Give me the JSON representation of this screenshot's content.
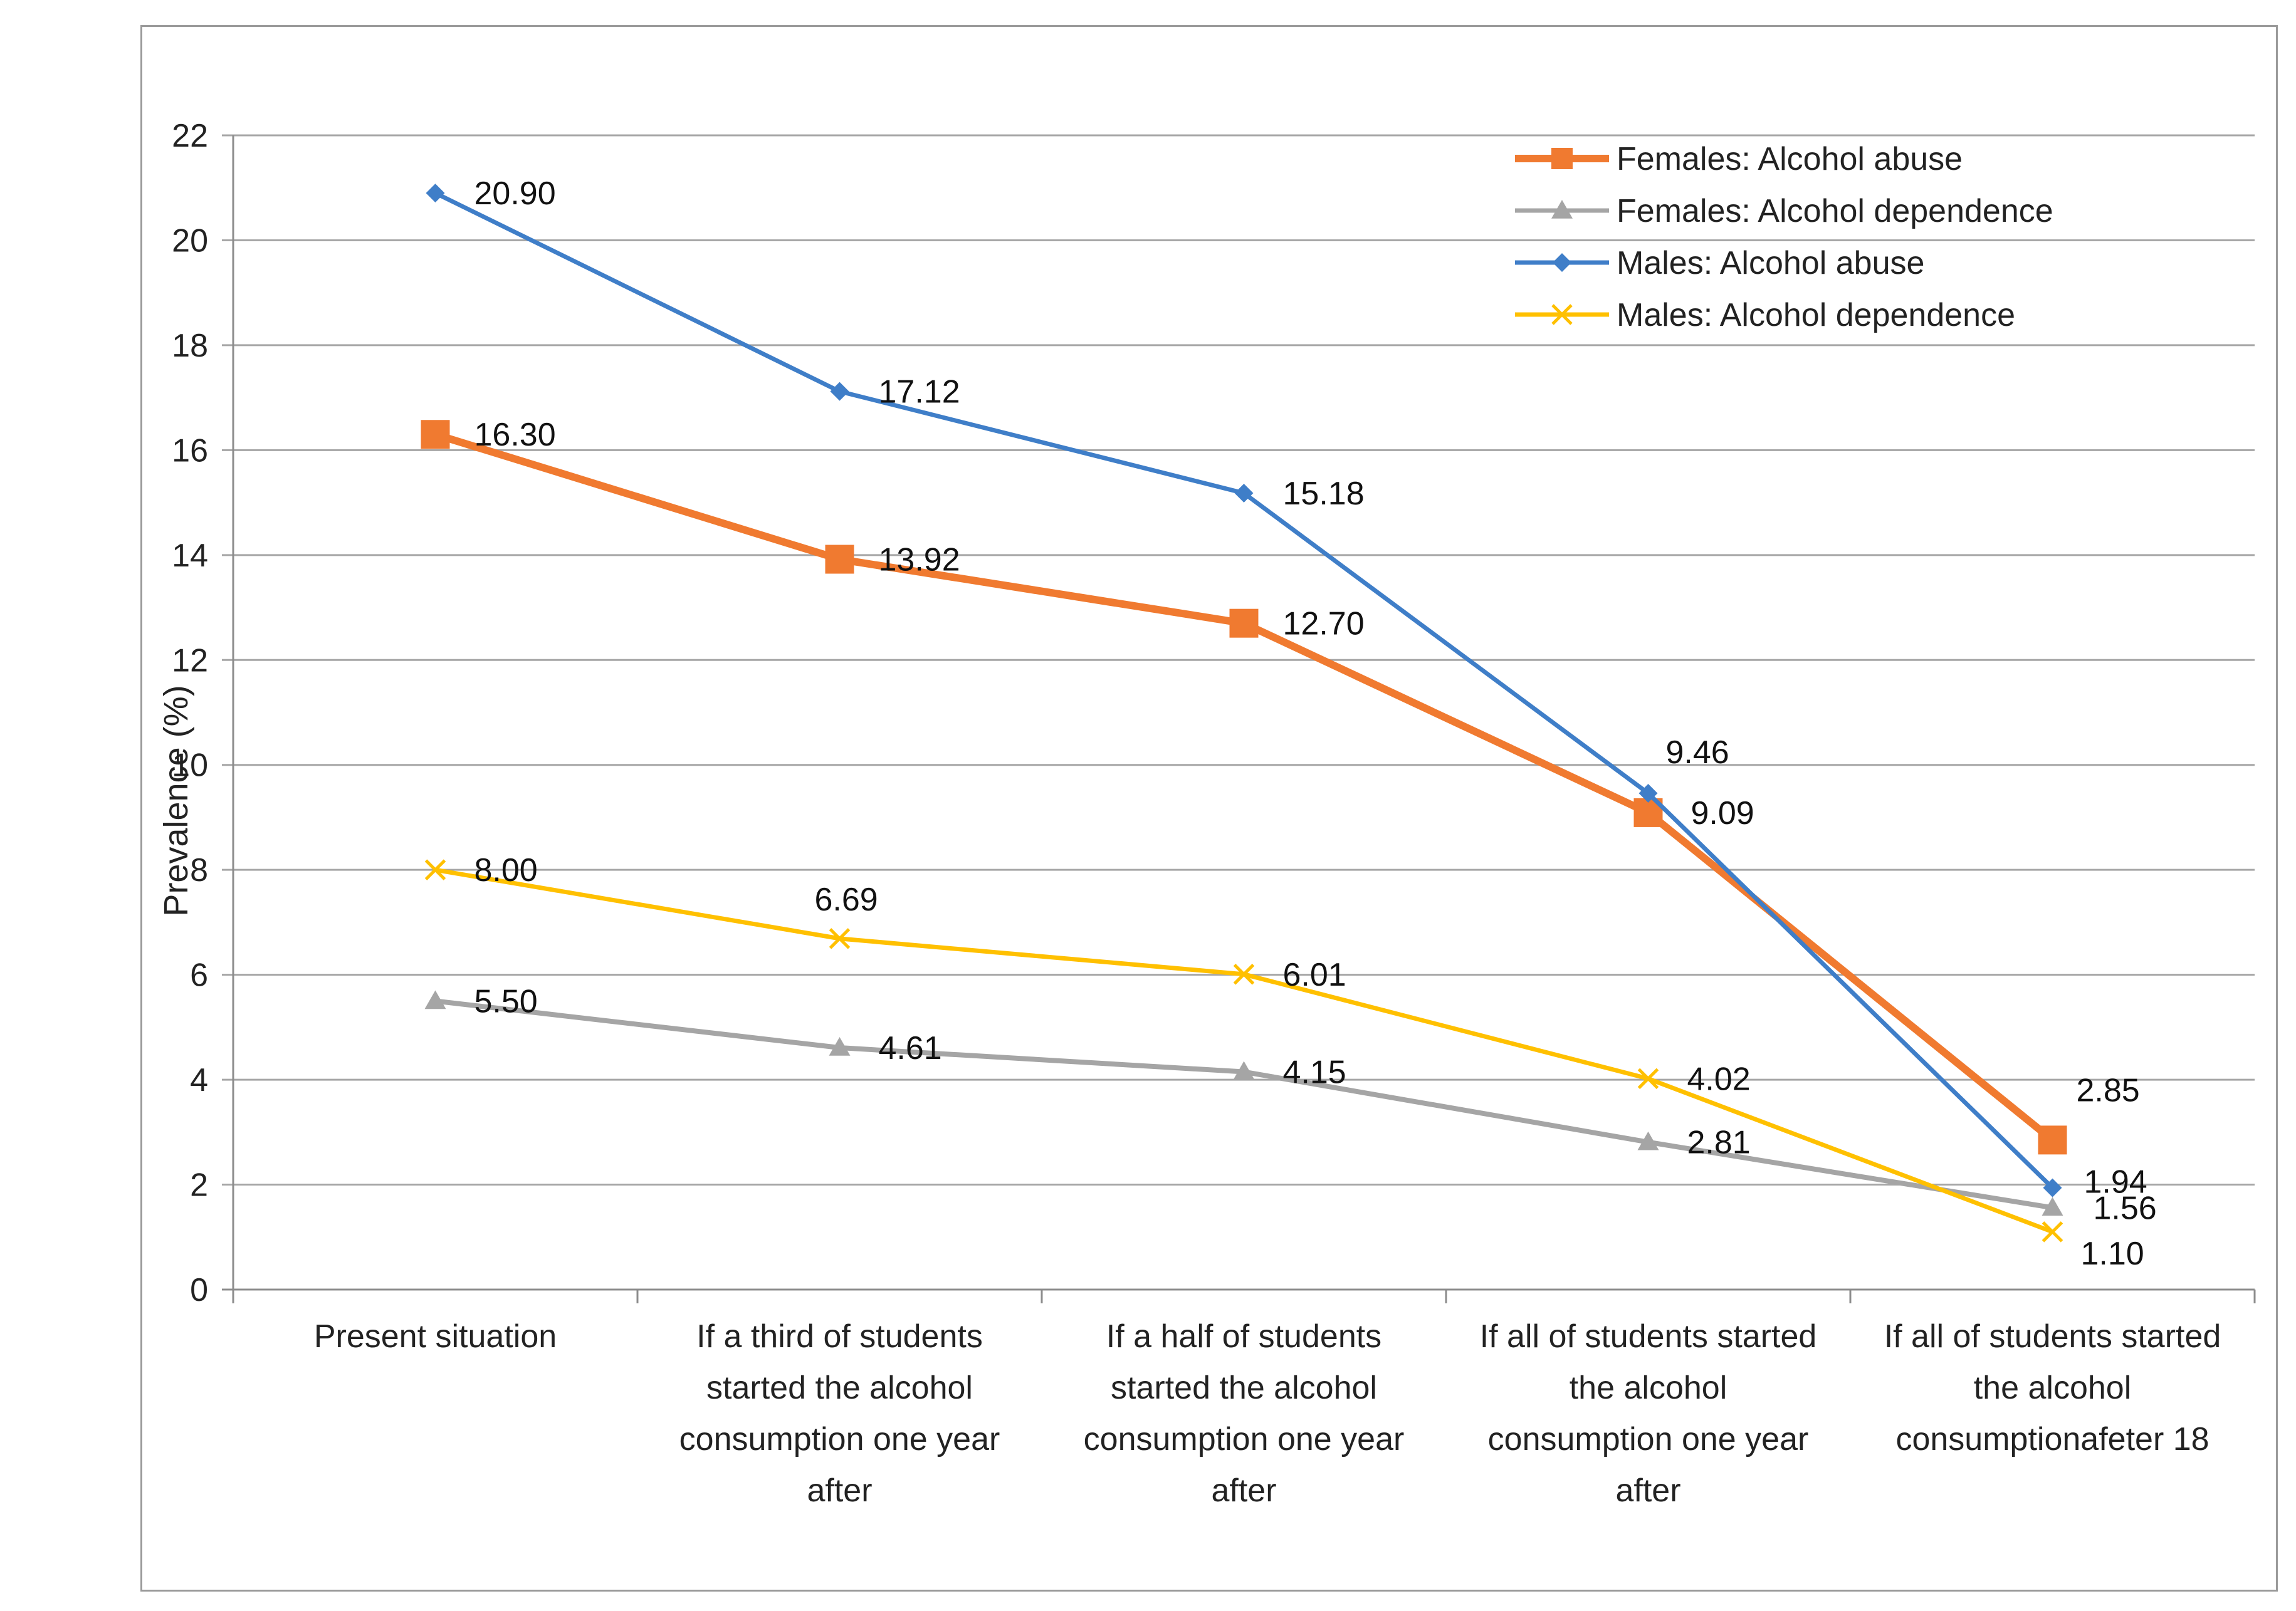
{
  "chart_data": {
    "type": "line",
    "title": "",
    "xlabel": "",
    "ylabel": "Prevalence (%)",
    "ylim": [
      0,
      22
    ],
    "ytick_step": 2,
    "yticks": [
      "0",
      "2",
      "4",
      "6",
      "8",
      "10",
      "12",
      "14",
      "16",
      "18",
      "20",
      "22"
    ],
    "grid": true,
    "legend_position": "top-right",
    "categories": [
      [
        "Present situation"
      ],
      [
        "If  a third of students",
        "started the alcohol",
        "consumption one year",
        "after"
      ],
      [
        "If  a half of students",
        "started the alcohol",
        "consumption one year",
        "after"
      ],
      [
        "If  all of students started",
        "the alcohol",
        "consumption one year",
        "after"
      ],
      [
        "If  all of students started",
        "the alcohol",
        "consumptionafeter 18"
      ]
    ],
    "series": [
      {
        "name": "Females: Alcohol abuse",
        "color": "#f07a30",
        "marker": "square",
        "values": [
          16.3,
          13.92,
          12.7,
          9.09,
          2.85
        ],
        "labels": [
          "16.30",
          "13.92",
          "12.70",
          "9.09",
          "2.85"
        ]
      },
      {
        "name": "Females: Alcohol dependence",
        "color": "#a5a5a5",
        "marker": "triangle",
        "values": [
          5.5,
          4.61,
          4.15,
          2.81,
          1.56
        ],
        "labels": [
          "5.50",
          "4.61",
          "4.15",
          "2.81",
          "1.56"
        ]
      },
      {
        "name": "Males: Alcohol abuse",
        "color": "#3f7ec8",
        "marker": "diamond",
        "values": [
          20.9,
          17.12,
          15.18,
          9.46,
          1.94
        ],
        "labels": [
          "20.90",
          "17.12",
          "15.18",
          "9.46",
          "1.94"
        ]
      },
      {
        "name": "Males: Alcohol dependence",
        "color": "#ffc000",
        "marker": "x",
        "values": [
          8.0,
          6.69,
          6.01,
          4.02,
          1.1
        ],
        "labels": [
          "8.00",
          "6.69",
          "6.01",
          "4.02",
          "1.10"
        ]
      }
    ]
  }
}
